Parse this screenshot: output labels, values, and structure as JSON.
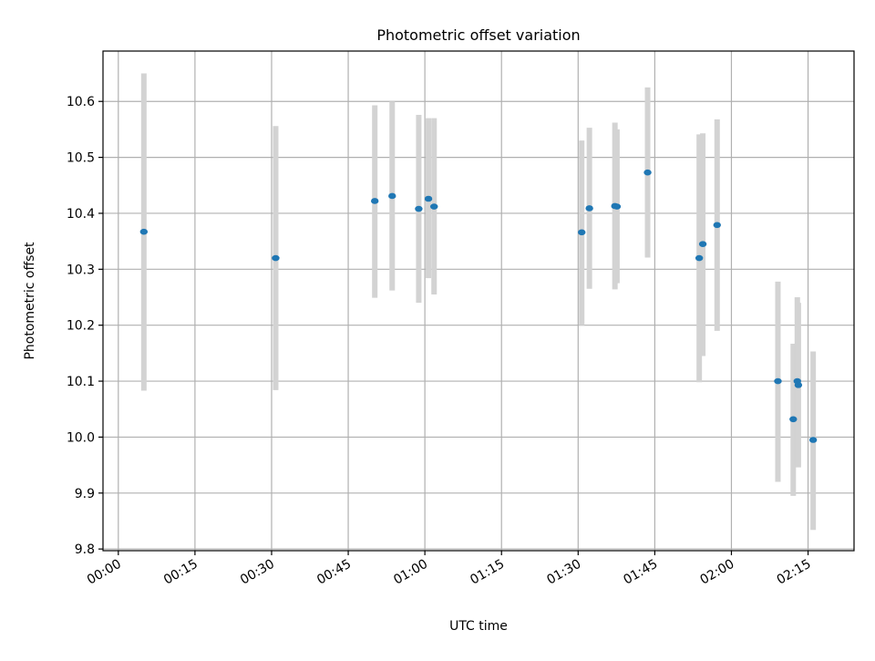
{
  "chart_data": {
    "type": "scatter",
    "title": "Photometric offset variation",
    "xlabel": "UTC time",
    "ylabel": "Photometric offset",
    "xlim": [
      "23:57",
      "02:24"
    ],
    "ylim": [
      9.797,
      10.69
    ],
    "xticks": [
      "00:00",
      "00:15",
      "00:30",
      "00:45",
      "01:00",
      "01:15",
      "01:30",
      "01:45",
      "02:00",
      "02:15"
    ],
    "yticks": [
      9.8,
      9.9,
      10.0,
      10.1,
      10.2,
      10.3,
      10.4,
      10.5,
      10.6
    ],
    "ytick_labels": [
      "9.8",
      "9.9",
      "10.0",
      "10.1",
      "10.2",
      "10.3",
      "10.4",
      "10.5",
      "10.6"
    ],
    "grid": true,
    "colors": {
      "points": "#1f77b4",
      "errorbars": "#d3d3d3"
    },
    "series": [
      {
        "x": [
          "00:05:00",
          "00:30:48",
          "00:50:12",
          "00:53:36",
          "00:58:48",
          "01:00:42",
          "01:01:48",
          "01:30:42",
          "01:32:12",
          "01:37:12",
          "01:37:36",
          "01:43:36",
          "01:53:42",
          "01:54:24",
          "01:57:12",
          "02:09:06",
          "02:12:06",
          "02:12:54",
          "02:13:06",
          "02:16:00"
        ],
        "y": [
          10.367,
          10.32,
          10.422,
          10.431,
          10.408,
          10.426,
          10.412,
          10.366,
          10.409,
          10.413,
          10.412,
          10.473,
          10.32,
          10.345,
          10.379,
          10.1,
          10.032,
          10.1,
          10.093,
          9.995
        ],
        "y_low": [
          10.083,
          10.084,
          10.249,
          10.262,
          10.24,
          10.284,
          10.255,
          10.2,
          10.265,
          10.264,
          10.275,
          10.321,
          10.098,
          10.145,
          10.19,
          9.92,
          9.895,
          9.95,
          9.946,
          9.834
        ],
        "y_high": [
          10.65,
          10.556,
          10.593,
          10.6,
          10.576,
          10.57,
          10.57,
          10.53,
          10.553,
          10.562,
          10.55,
          10.625,
          10.541,
          10.543,
          10.568,
          10.278,
          10.167,
          10.25,
          10.24,
          10.153
        ]
      }
    ]
  }
}
